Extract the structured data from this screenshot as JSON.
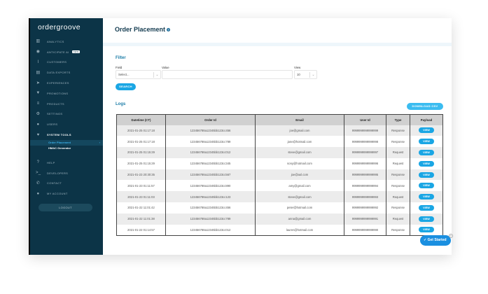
{
  "brand": "ordergroove",
  "sidebar": {
    "items": [
      {
        "label": "Analytics",
        "icon": "chart-icon"
      },
      {
        "label": "Anticipate AI",
        "icon": "ai-icon",
        "badge": "NEW"
      },
      {
        "label": "Customers",
        "icon": "info-icon"
      },
      {
        "label": "Data Exports",
        "icon": "export-icon"
      },
      {
        "label": "Experiences",
        "icon": "rocket-icon"
      },
      {
        "label": "Promotions",
        "icon": "tag-icon"
      },
      {
        "label": "Products",
        "icon": "products-icon"
      },
      {
        "label": "Settings",
        "icon": "gear-icon"
      },
      {
        "label": "Users",
        "icon": "user-icon"
      },
      {
        "label": "System Tools",
        "icon": "tools-icon"
      }
    ],
    "subitems": [
      {
        "label": "Order Placement"
      },
      {
        "label": "HMAC Generator"
      }
    ],
    "bottom": [
      {
        "label": "Help",
        "icon": "help-icon"
      },
      {
        "label": "Developers",
        "icon": "terminal-icon"
      },
      {
        "label": "Contact",
        "icon": "phone-icon"
      },
      {
        "label": "My Account",
        "icon": "account-icon"
      }
    ],
    "logout": "LOGOUT"
  },
  "header": {
    "title": "Order Placement"
  },
  "filter": {
    "heading": "Filter",
    "field_label": "Field",
    "field_value": "Select...",
    "value_label": "Value",
    "value_value": "",
    "view_label": "View",
    "view_value": "10",
    "search": "SEARCH"
  },
  "logs": {
    "heading": "Logs",
    "download": "DOWNLOAD CSV",
    "columns": [
      "Datetime (CT)",
      "Order Id",
      "Email",
      "User Id",
      "Type",
      "Payload"
    ],
    "view_label": "VIEW",
    "rows": [
      [
        "2021-01-25 01:17:18",
        "123456788a12345bb123cc456",
        "joe@gmail.com",
        "9999999999999999",
        "Response"
      ],
      [
        "2021-01-25 01:17:18",
        "123456788a12345bb123cc789",
        "jane@hotmail.com",
        "9999999999999998",
        "Response"
      ],
      [
        "2021-01-25 01:15:29",
        "123456788a12345bb123cc012",
        "steve@gmail.com",
        "9999999999999997",
        "Request"
      ],
      [
        "2021-01-25 01:15:29",
        "123456788a12345bb123cc345",
        "sony@hotmail.com",
        "9999999999999996",
        "Request"
      ],
      [
        "2021-01-23 20:30:35",
        "123456788a12345bb123cc567",
        "joe@aol.com",
        "9999999999999995",
        "Response"
      ],
      [
        "2021-01-23 01:11:57",
        "123456788a12345bb123cc890",
        "amy@gmail.com",
        "9999999999999994",
        "Response"
      ],
      [
        "2021-01-23 01:11:03",
        "123456788a12345bb123cc123",
        "steve@gmail.com",
        "9999999999999993",
        "Request"
      ],
      [
        "2021-01-22 11:01:42",
        "123456788a12345bb123cc456",
        "peter@hotmail.com",
        "9999999999999992",
        "Response"
      ],
      [
        "2021-01-22 11:01:38",
        "123456788a12345bb123cc789",
        "anna@gmail.com",
        "9999999999999991",
        "Request"
      ],
      [
        "2021-01-22 01:14:57",
        "123456788a12345bb123cc012",
        "lauren@hotmail.com",
        "9999999999999990",
        "Response"
      ]
    ]
  },
  "get_started": "Get Started",
  "colors": {
    "sidebar": "#0c3447",
    "accent": "#1aa6e4",
    "heading": "#1c7da8"
  }
}
